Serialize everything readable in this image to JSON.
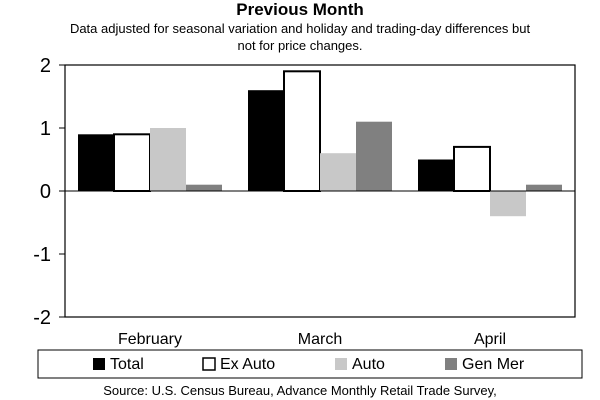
{
  "chart_data": {
    "type": "bar",
    "title": "Previous Month",
    "subtitle": "Data adjusted for seasonal variation and holiday and trading-day differences but not for price changes.",
    "categories": [
      "February",
      "March",
      "April"
    ],
    "series": [
      {
        "name": "Total",
        "values": [
          0.9,
          1.6,
          0.5
        ]
      },
      {
        "name": "Ex Auto",
        "values": [
          0.9,
          1.9,
          0.7
        ]
      },
      {
        "name": "Auto",
        "values": [
          1.0,
          0.6,
          -0.4
        ]
      },
      {
        "name": "Gen Mer",
        "values": [
          0.1,
          1.1,
          0.1
        ]
      }
    ],
    "ylim": [
      -2,
      2
    ],
    "yticks": [
      "2",
      "1",
      "0",
      "-1",
      "-2"
    ],
    "ytick_values": [
      2,
      1,
      0,
      -1,
      -2
    ],
    "grid": false,
    "legend_position": "bottom",
    "colors": {
      "Total": "#000000",
      "Ex Auto": "#ffffff",
      "Auto": "#c8c8c8",
      "Gen Mer": "#808080"
    },
    "source": "Source: U.S. Census Bureau, Advance Monthly Retail Trade Survey,"
  }
}
